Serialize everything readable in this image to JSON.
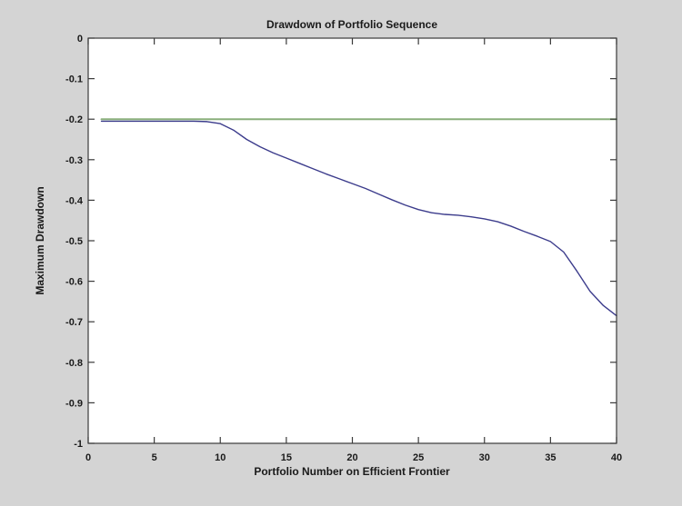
{
  "figure": {
    "background": "#d4d4d4",
    "plot_background": "#ffffff",
    "frame_color": "#3a3a3a",
    "text_color": "#1a1a1a"
  },
  "chart_data": {
    "type": "line",
    "title": "Drawdown of Portfolio Sequence",
    "xlabel": "Portfolio Number on Efficient Frontier",
    "ylabel": "Maximum Drawdown",
    "xlim": [
      0,
      40
    ],
    "ylim": [
      -1,
      0
    ],
    "xticks": [
      0,
      5,
      10,
      15,
      20,
      25,
      30,
      35,
      40
    ],
    "xtick_labels": [
      "0",
      "5",
      "10",
      "15",
      "20",
      "25",
      "30",
      "35",
      "40"
    ],
    "yticks": [
      0,
      -0.1,
      -0.2,
      -0.3,
      -0.4,
      -0.5,
      -0.6,
      -0.7,
      -0.8,
      -0.9,
      -1
    ],
    "ytick_labels": [
      "0",
      "-0.1",
      "-0.2",
      "-0.3",
      "-0.4",
      "-0.5",
      "-0.6",
      "-0.7",
      "-0.8",
      "-0.9",
      "-1"
    ],
    "grid": false,
    "legend": "none",
    "series": [
      {
        "name": "maximum-drawdown-curve",
        "color": "#3c3c8c",
        "width": 1.4,
        "x": [
          1,
          2,
          3,
          4,
          5,
          6,
          7,
          8,
          9,
          10,
          11,
          12,
          13,
          14,
          15,
          16,
          17,
          18,
          19,
          20,
          21,
          22,
          23,
          24,
          25,
          26,
          27,
          28,
          29,
          30,
          31,
          32,
          33,
          34,
          35,
          36,
          37,
          38,
          39,
          40
        ],
        "y": [
          -0.205,
          -0.205,
          -0.205,
          -0.205,
          -0.205,
          -0.205,
          -0.205,
          -0.205,
          -0.206,
          -0.211,
          -0.227,
          -0.25,
          -0.268,
          -0.283,
          -0.296,
          -0.309,
          -0.322,
          -0.335,
          -0.347,
          -0.359,
          -0.371,
          -0.385,
          -0.399,
          -0.412,
          -0.423,
          -0.431,
          -0.435,
          -0.437,
          -0.441,
          -0.446,
          -0.453,
          -0.464,
          -0.477,
          -0.489,
          -0.502,
          -0.528,
          -0.575,
          -0.625,
          -0.66,
          -0.685
        ]
      },
      {
        "name": "drawdown-limit-line",
        "color": "#8aaf7c",
        "width": 2,
        "x": [
          1,
          40
        ],
        "y": [
          -0.2,
          -0.2
        ]
      }
    ]
  }
}
